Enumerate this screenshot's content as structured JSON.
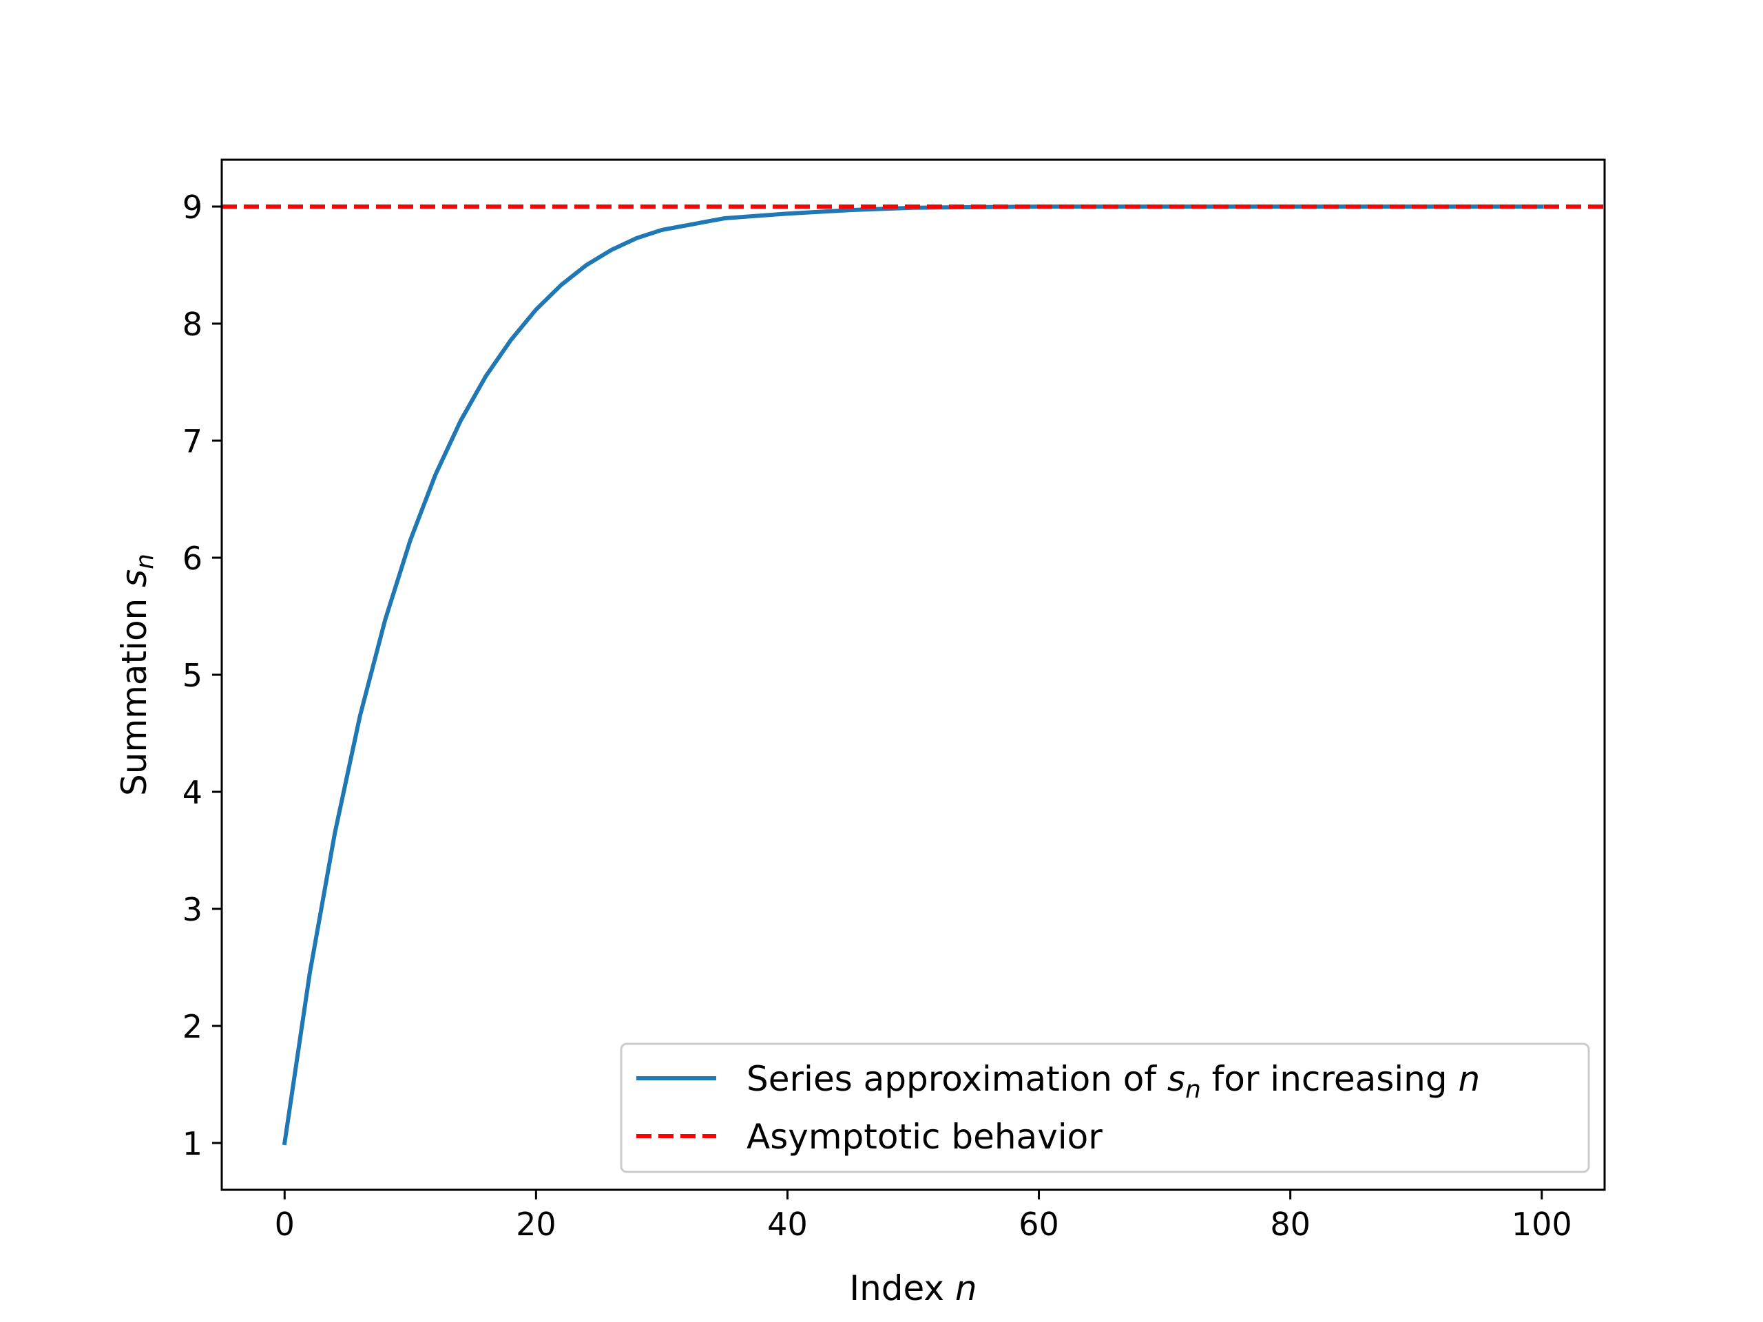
{
  "chart_data": {
    "type": "line",
    "title": "",
    "xlabel": {
      "text": "Index ",
      "var": "n"
    },
    "ylabel": {
      "text": "Summation ",
      "var": "s",
      "sub": "n"
    },
    "xlim": [
      -5,
      105
    ],
    "ylim": [
      0.6,
      9.4
    ],
    "xticks": [
      0,
      20,
      40,
      60,
      80,
      100
    ],
    "yticks": [
      1,
      2,
      3,
      4,
      5,
      6,
      7,
      8,
      9
    ],
    "grid": false,
    "legend": {
      "placement": "lower-right",
      "entries": [
        {
          "series": "series",
          "parts": [
            {
              "t": "Series approximation of "
            },
            {
              "t": "s",
              "italic": true
            },
            {
              "t": "n",
              "italic": true,
              "sub": true
            },
            {
              "t": " for increasing "
            },
            {
              "t": "n",
              "italic": true
            }
          ]
        },
        {
          "series": "asymptote",
          "parts": [
            {
              "t": "Asymptotic behavior"
            }
          ]
        }
      ]
    },
    "series": [
      {
        "id": "series",
        "color": "#1f77b4",
        "style": "solid",
        "x": [
          0,
          2,
          4,
          6,
          8,
          10,
          12,
          14,
          16,
          18,
          20,
          22,
          24,
          26,
          28,
          30,
          35,
          40,
          45,
          50,
          55,
          60,
          70,
          80,
          90,
          100
        ],
        "y": [
          1.0,
          2.45,
          3.65,
          4.65,
          5.47,
          6.15,
          6.71,
          7.17,
          7.55,
          7.86,
          8.12,
          8.33,
          8.5,
          8.63,
          8.73,
          8.8,
          8.9,
          8.94,
          8.97,
          8.99,
          8.995,
          9.0,
          9.0,
          9.0,
          9.0,
          9.0
        ]
      },
      {
        "id": "asymptote",
        "color": "#ff0000",
        "style": "dashed",
        "x": [
          -5,
          105
        ],
        "y": [
          9,
          9
        ]
      }
    ]
  }
}
